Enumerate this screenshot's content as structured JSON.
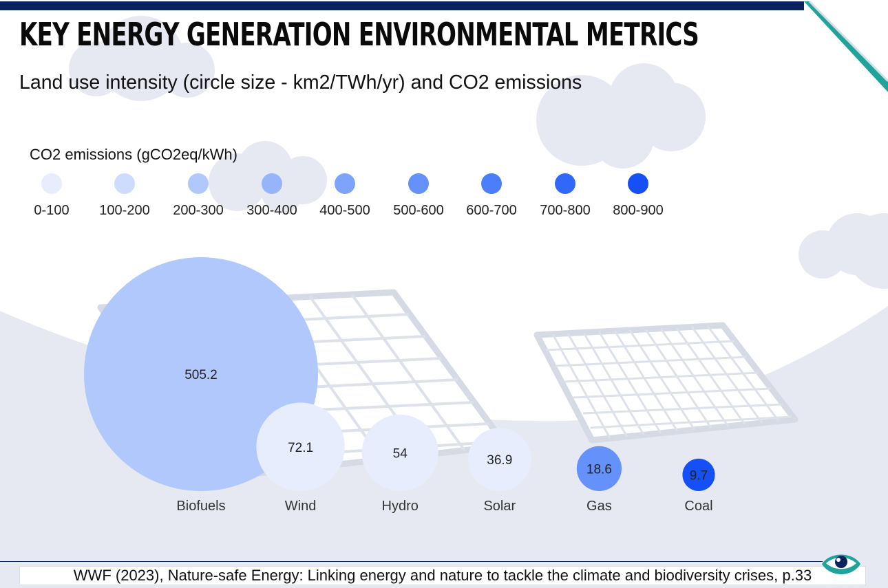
{
  "title": "KEY ENERGY GENERATION ENVIRONMENTAL METRICS",
  "subtitle": "Land use intensity (circle size - km2/TWh/yr) and CO2 emissions",
  "legend": {
    "title": "CO2 emissions (gCO2eq/kWh)",
    "items": [
      {
        "label": "0-100",
        "color": "#e7edfd"
      },
      {
        "label": "100-200",
        "color": "#cddbfd"
      },
      {
        "label": "200-300",
        "color": "#b1c8fc"
      },
      {
        "label": "300-400",
        "color": "#97b4fb"
      },
      {
        "label": "400-500",
        "color": "#7ea3fb"
      },
      {
        "label": "500-600",
        "color": "#6591fa"
      },
      {
        "label": "600-700",
        "color": "#4b7ef8"
      },
      {
        "label": "700-800",
        "color": "#3168f9"
      },
      {
        "label": "800-900",
        "color": "#1550f6"
      }
    ]
  },
  "chart_data": {
    "type": "bubble",
    "title": "KEY ENERGY GENERATION ENVIRONMENTAL METRICS",
    "subtitle": "Land use intensity (circle size - km2/TWh/yr) and CO2 emissions",
    "size_metric": "Land use intensity (km2/TWh/yr)",
    "color_metric": "CO2 emissions (gCO2eq/kWh)",
    "color_bins": [
      "0-100",
      "100-200",
      "200-300",
      "300-400",
      "400-500",
      "500-600",
      "600-700",
      "700-800",
      "800-900"
    ],
    "categories": [
      "Biofuels",
      "Wind",
      "Hydro",
      "Solar",
      "Gas",
      "Coal"
    ],
    "values": [
      505.2,
      72.1,
      54,
      36.9,
      18.6,
      9.7
    ],
    "co2_bins": [
      "200-300",
      "0-100",
      "0-100",
      "0-100",
      "500-600",
      "800-900"
    ]
  },
  "source": "WWF (2023), Nature-safe Energy: Linking energy and nature to tackle the climate and biodiversity crises, p.33",
  "logo_icon": "eye-logo-icon"
}
